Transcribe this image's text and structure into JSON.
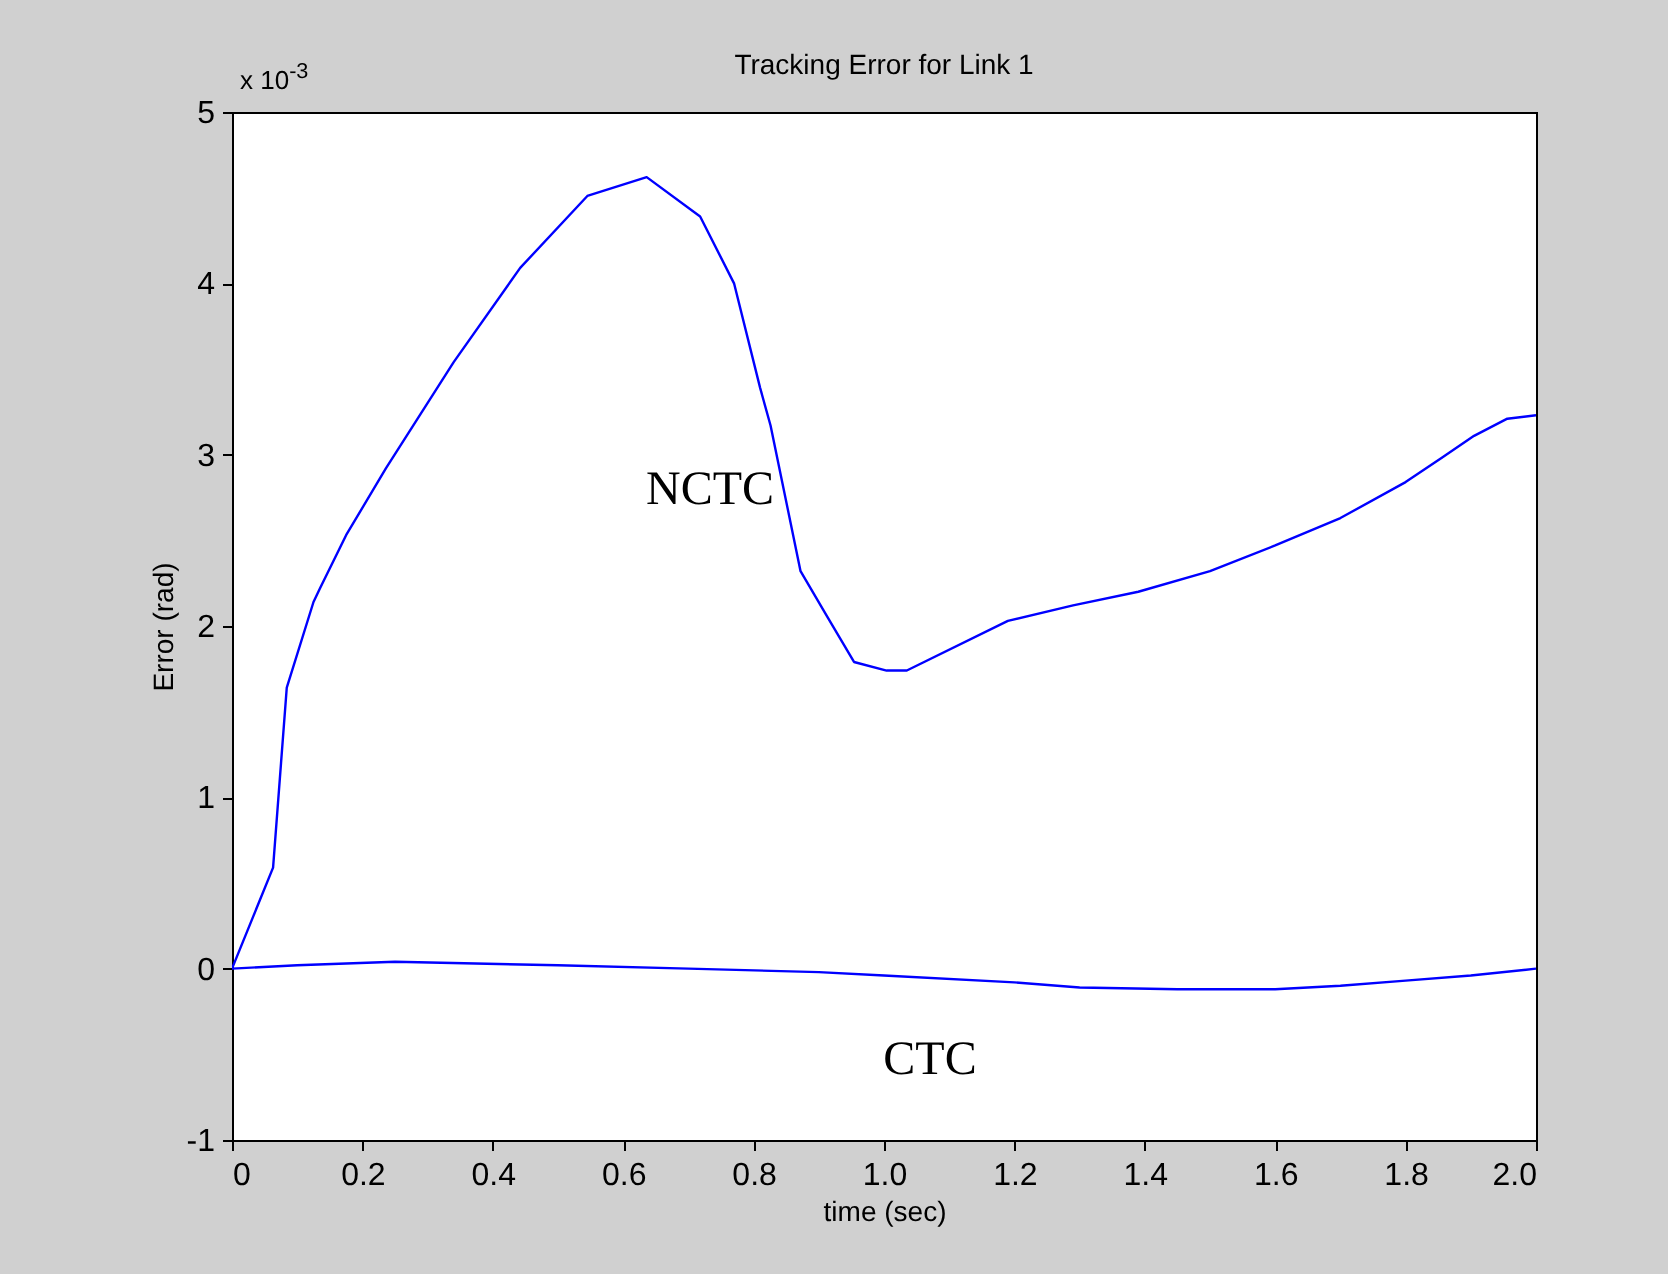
{
  "chart_data": {
    "type": "line",
    "title": "Tracking Error for Link 1",
    "xlabel": "time (sec)",
    "ylabel": "Error (rad)",
    "xlim": [
      0,
      2
    ],
    "xticks": [
      0,
      0.2,
      0.4,
      0.6,
      0.8,
      {
        "value": 1,
        "label": "1.0"
      },
      1.2,
      1.4,
      1.6,
      1.8,
      {
        "value": 2,
        "label": "2.0"
      }
    ],
    "ylim": [
      -1,
      5
    ],
    "yticks": [
      -1,
      0,
      1,
      2,
      3,
      4,
      5
    ],
    "grid": false,
    "legend": false,
    "line_style": "solid",
    "annotations": [
      "x 10$^{-3}$"
    ],
    "series": [
      {
        "name": "NCTC",
        "color": "#0000ff",
        "x": [
          0,
          0.063,
          0.084,
          0.125,
          0.135,
          0.175,
          0.236,
          0.34,
          0.442,
          0.545,
          0.636,
          0.718,
          0.77,
          0.81,
          0.826,
          0.872,
          0.912,
          0.954,
          1.004,
          1.035,
          1.19,
          1.29,
          1.39,
          1.5,
          1.6,
          1.7,
          1.8,
          1.855,
          1.905,
          1.956,
          2.0
        ],
        "values": [
          0,
          0.59,
          1.64,
          2.14,
          2.22,
          2.53,
          2.92,
          3.54,
          4.09,
          4.51,
          4.62,
          4.39,
          4.0,
          3.39,
          3.17,
          2.32,
          2.06,
          1.79,
          1.74,
          1.74,
          2.03,
          2.12,
          2.2,
          2.32,
          2.47,
          2.63,
          2.84,
          2.98,
          3.11,
          3.21,
          3.23
        ]
      },
      {
        "name": "CTC",
        "color": "#0000ff",
        "x": [
          0,
          0.1,
          0.25,
          0.5,
          0.7,
          0.9,
          1.0,
          1.2,
          1.3,
          1.45,
          1.6,
          1.7,
          1.8,
          1.9,
          2.0
        ],
        "values": [
          0,
          0.02,
          0.04,
          0.02,
          0,
          -0.02,
          -0.04,
          -0.08,
          -0.11,
          -0.12,
          -0.12,
          -0.1,
          -0.07,
          -0.04,
          0
        ]
      }
    ]
  }
}
